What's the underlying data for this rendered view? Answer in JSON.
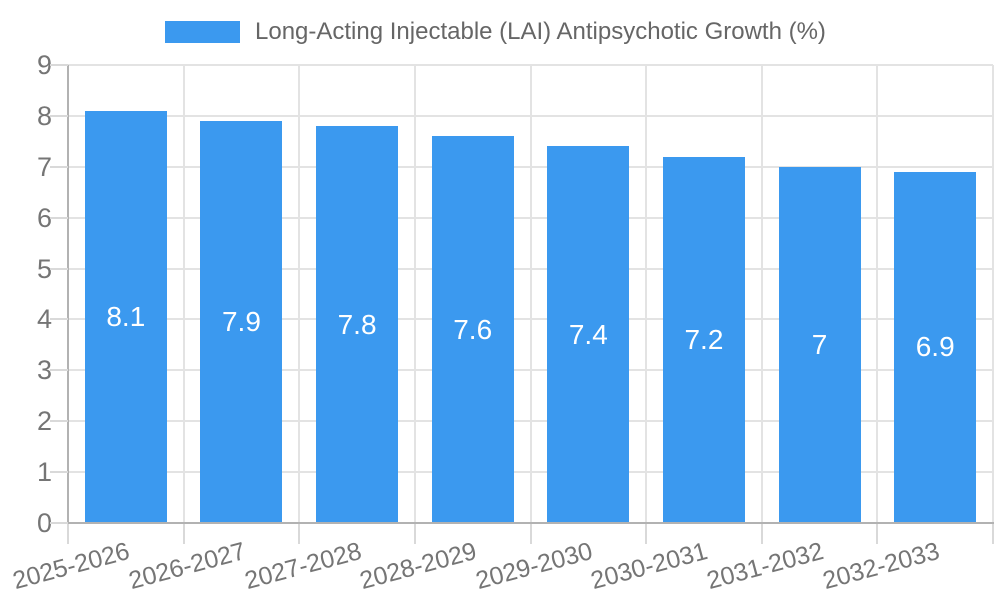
{
  "chart_data": {
    "type": "bar",
    "title": "Long-Acting Injectable (LAI) Antipsychotic Growth (%)",
    "categories": [
      "2025-2026",
      "2026-2027",
      "2027-2028",
      "2028-2029",
      "2029-2030",
      "2030-2031",
      "2031-2032",
      "2032-2033"
    ],
    "values": [
      8.1,
      7.9,
      7.8,
      7.6,
      7.4,
      7.2,
      7,
      6.9
    ],
    "value_labels": [
      "8.1",
      "7.9",
      "7.8",
      "7.6",
      "7.4",
      "7.2",
      "7",
      "6.9"
    ],
    "xlabel": "",
    "ylabel": "",
    "ylim": [
      0,
      9
    ],
    "y_ticks": [
      0,
      1,
      2,
      3,
      4,
      5,
      6,
      7,
      8,
      9
    ],
    "grid": true,
    "legend_position": "top",
    "colors": {
      "bar": "#3B99EF",
      "bar_label_text": "#ffffff",
      "title_text": "#666666",
      "axis_label_text": "#757575",
      "gridline": "#e3e3e3",
      "axis_line": "#b2b2b2",
      "tick_mark": "#d9d9d9",
      "background": "#ffffff"
    }
  }
}
